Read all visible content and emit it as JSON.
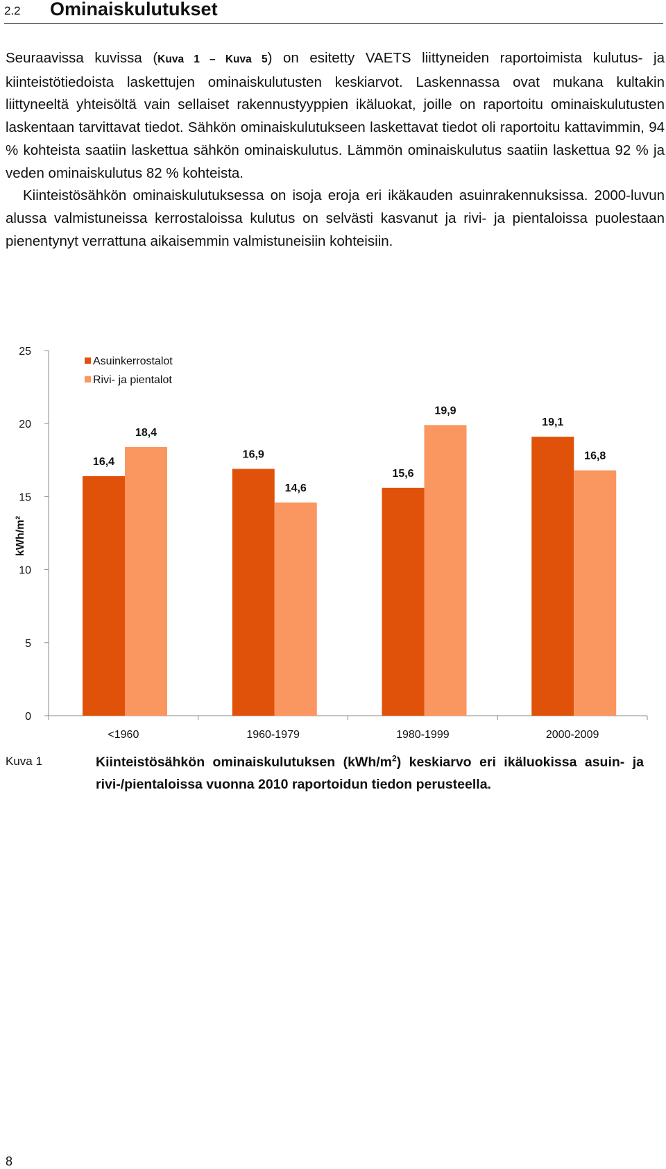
{
  "section": {
    "number": "2.2",
    "title": "Ominaiskulutukset"
  },
  "paragraph1": {
    "before_ref": "Seuraavissa kuvissa (",
    "ref": "Kuva 1 – Kuva 5",
    "after_ref": ") on esitetty VAETS liittyneiden raportoimista kulutus- ja kiinteistötiedoista laskettujen ominaiskulutusten keskiarvot. Laskennassa ovat mukana kultakin liittyneeltä yhteisöltä vain sellaiset rakennustyyppien ikäluokat, joille on raportoitu ominaiskulutusten laskentaan tarvittavat tiedot. Sähkön ominaiskulutukseen laskettavat tiedot oli raportoitu kattavimmin, 94 % kohteista saatiin laskettua sähkön ominaiskulutus. Lämmön ominaiskulutus saatiin laskettua 92 % ja veden ominaiskulutus 82 % kohteista."
  },
  "paragraph2": "Kiinteistösähkön ominaiskulutuksessa on isoja eroja eri ikäkauden asuinrakennuksissa. 2000-luvun alussa valmistuneissa kerrostaloissa kulutus on selvästi kasvanut ja rivi- ja pientaloissa puolestaan pienentynyt verrattuna aikaisemmin valmistuneisiin kohteisiin.",
  "chart_data": {
    "type": "bar",
    "categories": [
      "<1960",
      "1960-1979",
      "1980-1999",
      "2000-2009"
    ],
    "series": [
      {
        "name": "Asuinkerrostalot",
        "values": [
          16.4,
          16.9,
          15.6,
          19.1
        ],
        "labels": [
          "16,4",
          "16,9",
          "15,6",
          "19,1"
        ],
        "color": "#E0520A"
      },
      {
        "name": "Rivi- ja pientalot",
        "values": [
          18.4,
          14.6,
          19.9,
          16.8
        ],
        "labels": [
          "18,4",
          "14,6",
          "19,9",
          "16,8"
        ],
        "color": "#FA9660"
      }
    ],
    "ylabel": "kWh/m²",
    "ylim": [
      0,
      25
    ],
    "yticks": [
      0,
      5,
      10,
      15,
      20,
      25
    ],
    "legend_position": "top-left",
    "grid": false
  },
  "caption": {
    "label": "Kuva 1",
    "text_before_sup": "Kiinteistösähkön ominaiskulutuksen (kWh/m",
    "sup": "2",
    "text_after_sup": ") keskiarvo eri ikäluokissa asuin- ja rivi-/pientaloissa vuonna 2010 raportoidun tiedon perusteella."
  },
  "page_number": "8"
}
